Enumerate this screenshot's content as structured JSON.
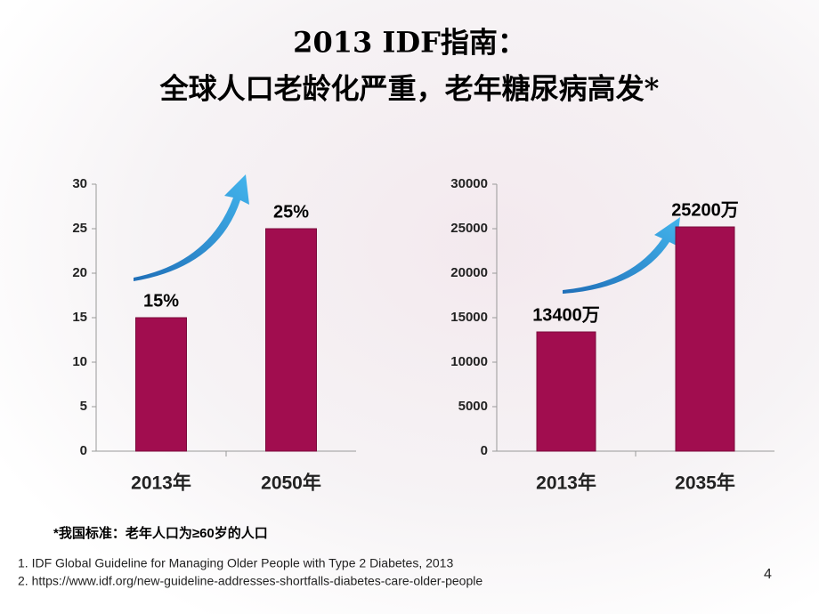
{
  "title": [
    "2013 IDF指南：",
    "全球人口老龄化严重，老年糖尿病高发*"
  ],
  "chart_data": [
    {
      "type": "bar",
      "categories": [
        "2013年",
        "2050年"
      ],
      "values": [
        15,
        25
      ],
      "value_labels": [
        "15%",
        "25%"
      ],
      "color": "#a10d4f",
      "ylim": [
        0,
        30
      ],
      "yticks": [
        0,
        5,
        10,
        15,
        20,
        25,
        30
      ],
      "grid": false
    },
    {
      "type": "bar",
      "categories": [
        "2013年",
        "2035年"
      ],
      "values": [
        13400,
        25200
      ],
      "value_labels": [
        "13400万",
        "25200万"
      ],
      "color": "#a10d4f",
      "ylim": [
        0,
        30000
      ],
      "yticks": [
        0,
        5000,
        10000,
        15000,
        20000,
        25000,
        30000
      ],
      "grid": false
    }
  ],
  "footnote": "*我国标准：老年人口为≥60岁的人口",
  "references": [
    "1. IDF Global Guideline for Managing Older People with Type 2 Diabetes, 2013",
    "2. https://www.idf.org/new-guideline-addresses-shortfalls-diabetes-care-older-people"
  ],
  "page_number": "4"
}
